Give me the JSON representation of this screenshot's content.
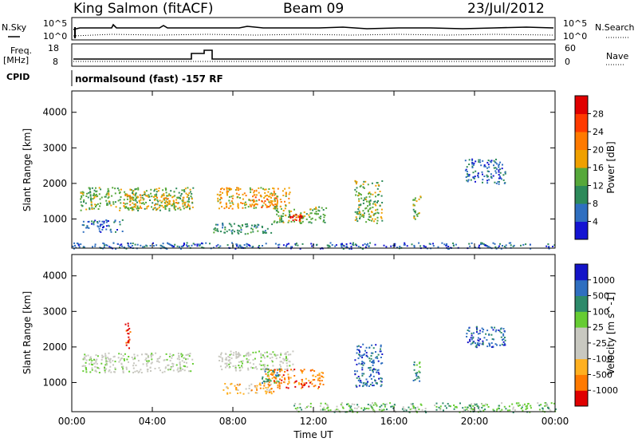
{
  "header": {
    "station": "King Salmon (fitACF)",
    "beam": "Beam 09",
    "date": "23/Jul/2012"
  },
  "summary_panels": {
    "nsky_label": "N.Sky",
    "nsky_ticks": [
      "10^5",
      "10^0"
    ],
    "nsearch_label": "N.Search",
    "nsearch_ticks": [
      "10^5",
      "10^0"
    ],
    "freq_label_line1": "Freq.",
    "freq_label_line2": "[MHz]",
    "freq_ticks": [
      "18",
      "8"
    ],
    "nave_label": "Nave",
    "nave_ticks": [
      "60",
      "0"
    ],
    "cpid_label": "CPID",
    "cpid_text": "normalsound (fast) -157 RF"
  },
  "chart_data": [
    {
      "type": "heatmap",
      "name": "power",
      "ylabel": "Slant Range [km]",
      "xlabel": "",
      "x_ticks": [
        "00:00",
        "04:00",
        "08:00",
        "12:00",
        "16:00",
        "20:00",
        "00:00"
      ],
      "x_tick_hours": [
        0,
        4,
        8,
        12,
        16,
        20,
        24
      ],
      "y_ticks": [
        1000,
        2000,
        3000,
        4000
      ],
      "ylim": [
        180,
        4600
      ],
      "xlim_hours": [
        0,
        24
      ],
      "colorbar": {
        "label": "Power [dB]",
        "ticks": [
          "4",
          "8",
          "12",
          "16",
          "20",
          "24",
          "28"
        ],
        "colors": [
          "#1414d2",
          "#2f6fc0",
          "#2d8a5a",
          "#56a83a",
          "#f0a000",
          "#ff7a00",
          "#ff3a00",
          "#e00000"
        ]
      },
      "regions": [
        {
          "hours": [
            0.4,
            6.0
          ],
          "range": [
            1250,
            1900
          ],
          "level": 3
        },
        {
          "hours": [
            2.5,
            5.8
          ],
          "range": [
            1300,
            1700
          ],
          "level": 4
        },
        {
          "hours": [
            0.5,
            2.5
          ],
          "range": [
            650,
            1000
          ],
          "level": 1
        },
        {
          "hours": [
            7.2,
            10.8
          ],
          "range": [
            1300,
            1900
          ],
          "level": 4
        },
        {
          "hours": [
            8.8,
            10.2
          ],
          "range": [
            1350,
            1700
          ],
          "level": 5
        },
        {
          "hours": [
            10.0,
            12.6
          ],
          "range": [
            900,
            1400
          ],
          "level": 3
        },
        {
          "hours": [
            10.8,
            11.4
          ],
          "range": [
            950,
            1150
          ],
          "level": 7
        },
        {
          "hours": [
            7.0,
            10.0
          ],
          "range": [
            600,
            900
          ],
          "level": 2
        },
        {
          "hours": [
            14.0,
            15.4
          ],
          "range": [
            900,
            2100
          ],
          "level": 3
        },
        {
          "hours": [
            16.9,
            17.3
          ],
          "range": [
            1000,
            1700
          ],
          "level": 3
        },
        {
          "hours": [
            19.5,
            21.5
          ],
          "range": [
            2000,
            2700
          ],
          "level": 1
        },
        {
          "hours": [
            0.0,
            24.0
          ],
          "range": [
            180,
            350
          ],
          "level": 1
        }
      ]
    },
    {
      "type": "heatmap",
      "name": "velocity",
      "ylabel": "Slant Range [km]",
      "xlabel": "Time UT",
      "x_ticks": [
        "00:00",
        "04:00",
        "08:00",
        "12:00",
        "16:00",
        "20:00",
        "00:00"
      ],
      "x_tick_hours": [
        0,
        4,
        8,
        12,
        16,
        20,
        24
      ],
      "y_ticks": [
        1000,
        2000,
        3000,
        4000
      ],
      "ylim": [
        180,
        4600
      ],
      "xlim_hours": [
        0,
        24
      ],
      "colorbar": {
        "label": "Velocity [m s^-1]",
        "ticks": [
          "1000",
          "500",
          "100",
          "25",
          "-25",
          "-100",
          "-500",
          "-1000"
        ],
        "colors": [
          "#1414c8",
          "#2f6fc0",
          "#2d8a6a",
          "#66cc33",
          "#c8c8c0",
          "#c8c8c0",
          "#ffb020",
          "#ff7a00",
          "#e00000"
        ]
      },
      "regions": [
        {
          "hours": [
            0.4,
            6.0
          ],
          "range": [
            1300,
            1850
          ],
          "level": 4
        },
        {
          "hours": [
            2.6,
            2.9
          ],
          "range": [
            1900,
            2700
          ],
          "level": 8
        },
        {
          "hours": [
            7.2,
            11.0
          ],
          "range": [
            1350,
            1900
          ],
          "level": 4
        },
        {
          "hours": [
            7.5,
            10.0
          ],
          "range": [
            700,
            1000
          ],
          "level": 6
        },
        {
          "hours": [
            9.5,
            12.5
          ],
          "range": [
            850,
            1400
          ],
          "level": 7
        },
        {
          "hours": [
            9.3,
            10.3
          ],
          "range": [
            1000,
            1400
          ],
          "level": 2
        },
        {
          "hours": [
            14.0,
            15.4
          ],
          "range": [
            900,
            2100
          ],
          "level": 1
        },
        {
          "hours": [
            16.9,
            17.3
          ],
          "range": [
            1000,
            1600
          ],
          "level": 2
        },
        {
          "hours": [
            19.5,
            21.5
          ],
          "range": [
            2000,
            2600
          ],
          "level": 1
        },
        {
          "hours": [
            11.0,
            24.0
          ],
          "range": [
            180,
            450
          ],
          "level": 3
        }
      ]
    }
  ]
}
